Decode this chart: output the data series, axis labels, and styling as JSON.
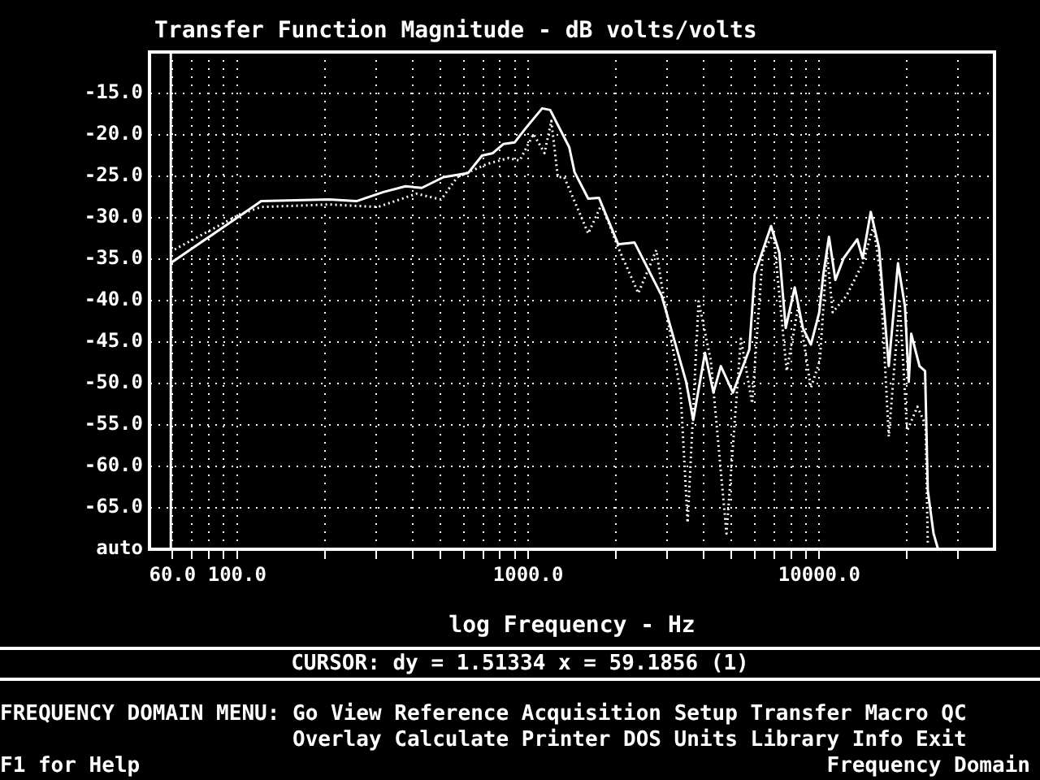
{
  "chart_data": {
    "type": "line",
    "title": "Transfer Function Magnitude - dB volts/volts",
    "xlabel": "log Frequency - Hz",
    "log": "x",
    "grid": true,
    "marker": "none",
    "xlim": [
      50,
      40000
    ],
    "xticks": [
      {
        "value": 60,
        "label": "60.0"
      },
      {
        "value": 70,
        "label": null
      },
      {
        "value": 80,
        "label": null
      },
      {
        "value": 90,
        "label": null
      },
      {
        "value": 100,
        "label": "100.0"
      },
      {
        "value": 200,
        "label": null
      },
      {
        "value": 300,
        "label": null
      },
      {
        "value": 400,
        "label": null
      },
      {
        "value": 500,
        "label": null
      },
      {
        "value": 600,
        "label": null
      },
      {
        "value": 700,
        "label": null
      },
      {
        "value": 800,
        "label": null
      },
      {
        "value": 900,
        "label": null
      },
      {
        "value": 1000,
        "label": "1000.0"
      },
      {
        "value": 2000,
        "label": null
      },
      {
        "value": 3000,
        "label": null
      },
      {
        "value": 4000,
        "label": null
      },
      {
        "value": 5000,
        "label": null
      },
      {
        "value": 6000,
        "label": null
      },
      {
        "value": 7000,
        "label": null
      },
      {
        "value": 8000,
        "label": null
      },
      {
        "value": 9000,
        "label": null
      },
      {
        "value": 10000,
        "label": "10000.0"
      },
      {
        "value": 20000,
        "label": null
      },
      {
        "value": 30000,
        "label": null
      }
    ],
    "ylim": [
      -70,
      -10
    ],
    "yticks": [
      {
        "value": -70,
        "label": "auto"
      },
      {
        "value": -65,
        "label": "-65.0"
      },
      {
        "value": -60,
        "label": "-60.0"
      },
      {
        "value": -55,
        "label": "-55.0"
      },
      {
        "value": -50,
        "label": "-50.0"
      },
      {
        "value": -45,
        "label": "-45.0"
      },
      {
        "value": -40,
        "label": "-40.0"
      },
      {
        "value": -35,
        "label": "-35.0"
      },
      {
        "value": -30,
        "label": "-30.0"
      },
      {
        "value": -25,
        "label": "-25.0"
      },
      {
        "value": -20,
        "label": "-20.0"
      },
      {
        "value": -15,
        "label": "-15.0"
      }
    ],
    "ref_lines": [
      {
        "axis": "x",
        "value": 59.1856,
        "color": "#ffffff",
        "line_style": "solid"
      }
    ],
    "series": [
      {
        "color": "#ffffff",
        "line_style": "solid",
        "x": [
          59,
          121,
          207,
          257,
          318,
          379,
          431,
          512,
          622,
          694,
          756,
          823,
          899,
          980,
          1117,
          1190,
          1384,
          1443,
          1608,
          1751,
          2038,
          2320,
          2874,
          3488,
          3690,
          4050,
          4330,
          4590,
          5050,
          5750,
          6000,
          6830,
          7290,
          7670,
          8240,
          8780,
          9360,
          10000,
          10330,
          10800,
          11360,
          12120,
          13500,
          14100,
          15030,
          16040,
          17330,
          18640,
          19700,
          20300,
          20700,
          22100,
          23100,
          23600,
          24700,
          25600
        ],
        "values": [
          -35.5,
          -28.0,
          -27.8,
          -28.0,
          -26.9,
          -26.2,
          -26.4,
          -25.1,
          -24.6,
          -22.5,
          -22.2,
          -21.1,
          -20.9,
          -19.2,
          -16.8,
          -17.0,
          -21.5,
          -24.5,
          -27.7,
          -27.6,
          -33.2,
          -33.0,
          -39.4,
          -49.8,
          -54.4,
          -46.3,
          -51.1,
          -47.9,
          -51.1,
          -45.9,
          -36.8,
          -31.0,
          -34.2,
          -43.3,
          -38.4,
          -43.3,
          -45.3,
          -41.4,
          -36.8,
          -32.3,
          -37.5,
          -34.9,
          -32.6,
          -34.9,
          -29.3,
          -33.6,
          -47.9,
          -35.5,
          -40.7,
          -49.8,
          -44.0,
          -47.9,
          -48.5,
          -62.9,
          -68.1,
          -70
        ]
      },
      {
        "color": "#ffffff",
        "line_style": "dotted",
        "x": [
          59,
          102,
          121,
          207,
          305,
          413,
          502,
          571,
          723,
          857,
          935,
          1043,
          1138,
          1201,
          1264,
          1330,
          1608,
          1786,
          2038,
          2390,
          2755,
          2874,
          3340,
          3530,
          3850,
          4240,
          4800,
          5380,
          5880,
          6400,
          6960,
          7730,
          8470,
          9360,
          10050,
          10630,
          11120,
          12410,
          14100,
          15360,
          16200,
          17330,
          18880,
          20040,
          21740,
          23200,
          23600
        ],
        "values": [
          -34.1,
          -29.6,
          -28.7,
          -28.4,
          -28.7,
          -27.1,
          -27.8,
          -25.1,
          -23.5,
          -22.8,
          -23.1,
          -19.9,
          -22.2,
          -18.3,
          -25.1,
          -25.1,
          -31.9,
          -28.4,
          -33.6,
          -39.1,
          -33.9,
          -38.1,
          -51.1,
          -66.8,
          -40.1,
          -47.2,
          -68.1,
          -44.6,
          -52.4,
          -34.2,
          -31.9,
          -48.5,
          -40.7,
          -50.5,
          -47.2,
          -34.2,
          -41.4,
          -39.4,
          -35.5,
          -31.0,
          -36.8,
          -56.4,
          -40.1,
          -55.7,
          -52.8,
          -55.0,
          -69.4
        ]
      }
    ],
    "annotations": [
      "CURSOR: dy = 1.51334 x = 59.1856 (1)",
      "FREQUENCY DOMAIN MENU: Go View Reference Acquisition Setup Transfer Macro QC",
      "Overlay Calculate Printer DOS Units Library Info Exit",
      "F1 for Help",
      "Frequency Domain"
    ]
  }
}
